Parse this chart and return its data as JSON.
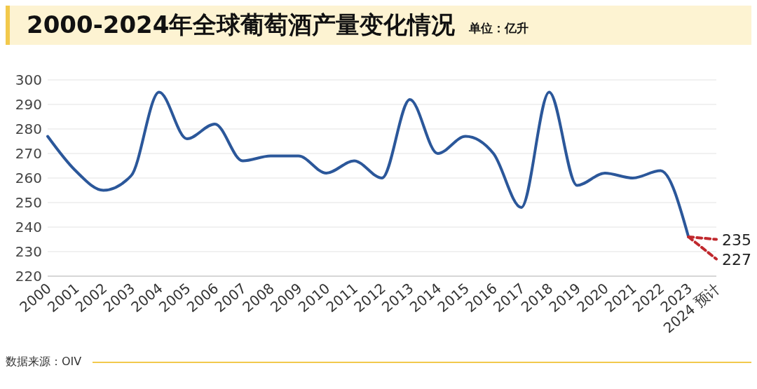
{
  "chart_data": {
    "type": "line",
    "title": "2000-2024年全球葡萄酒产量变化情况",
    "subtitle": "单位：亿升",
    "annotations": [
      "数据来源：OIV"
    ],
    "categories": [
      "2000",
      "2001",
      "2002",
      "2003",
      "2004",
      "2005",
      "2006",
      "2007",
      "2008",
      "2009",
      "2010",
      "2011",
      "2012",
      "2013",
      "2014",
      "2015",
      "2016",
      "2017",
      "2018",
      "2019",
      "2020",
      "2021",
      "2022",
      "2023",
      "2024 预计"
    ],
    "series": [
      {
        "color": "#2b579a",
        "line_style": "solid",
        "values": [
          277,
          263,
          255,
          261,
          295,
          276,
          282,
          267,
          269,
          269,
          262,
          267,
          260,
          292,
          270,
          277,
          270,
          248,
          295,
          257,
          262,
          260,
          263,
          236,
          null
        ]
      },
      {
        "color": "#c0282d",
        "line_style": "dashed",
        "values": [
          null,
          null,
          null,
          null,
          null,
          null,
          null,
          null,
          null,
          null,
          null,
          null,
          null,
          null,
          null,
          null,
          null,
          null,
          null,
          null,
          null,
          null,
          null,
          236,
          235
        ],
        "value_labels": [
          null,
          null,
          null,
          null,
          null,
          null,
          null,
          null,
          null,
          null,
          null,
          null,
          null,
          null,
          null,
          null,
          null,
          null,
          null,
          null,
          null,
          null,
          null,
          null,
          "235"
        ]
      },
      {
        "color": "#c0282d",
        "line_style": "dashed",
        "values": [
          null,
          null,
          null,
          null,
          null,
          null,
          null,
          null,
          null,
          null,
          null,
          null,
          null,
          null,
          null,
          null,
          null,
          null,
          null,
          null,
          null,
          null,
          null,
          236,
          227
        ],
        "value_labels": [
          null,
          null,
          null,
          null,
          null,
          null,
          null,
          null,
          null,
          null,
          null,
          null,
          null,
          null,
          null,
          null,
          null,
          null,
          null,
          null,
          null,
          null,
          null,
          null,
          "227"
        ]
      }
    ],
    "ylim": [
      220,
      300
    ],
    "yticks": [
      220,
      230,
      240,
      250,
      260,
      270,
      280,
      290,
      300
    ],
    "grid": "y",
    "legend": false,
    "marker": "none"
  }
}
